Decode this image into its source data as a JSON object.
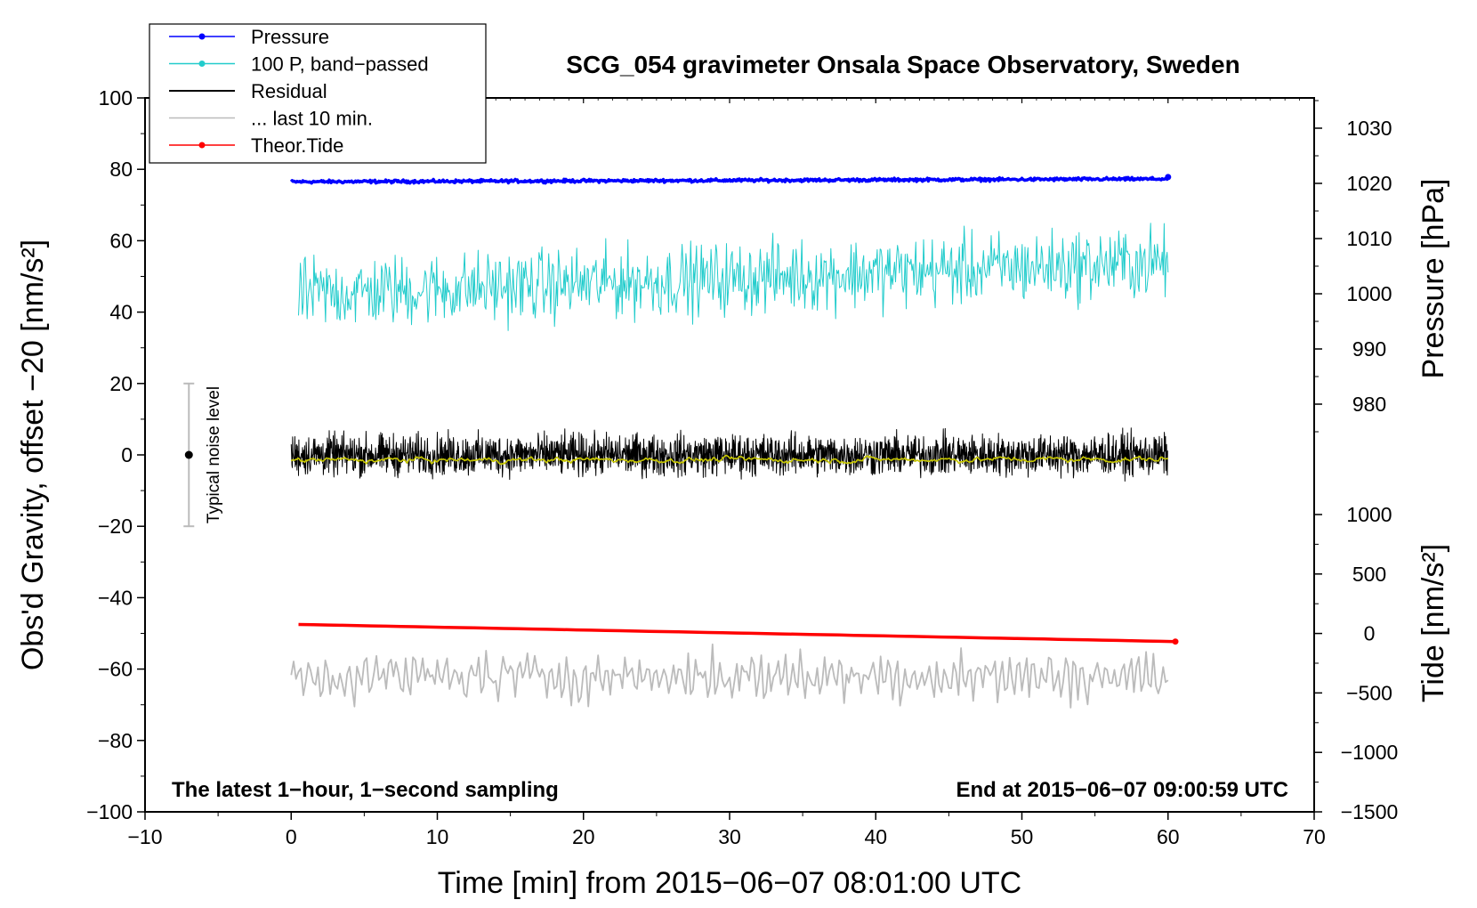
{
  "chart_data": {
    "type": "line",
    "title": "SCG_054 gravimeter Onsala Space Observatory, Sweden",
    "xlabel": "Time [min] from 2015−06−07 08:01:00 UTC",
    "ylabel_left": "Obs'd Gravity, offset −20 [nm/s²]",
    "ylabel_right_top": "Pressure [hPa]",
    "ylabel_right_bottom": "Tide [nm/s²]",
    "xlim": [
      -10,
      70
    ],
    "ylim": [
      -100,
      100
    ],
    "x_ticks": [
      "−10",
      "0",
      "10",
      "20",
      "30",
      "40",
      "50",
      "60",
      "70"
    ],
    "y_ticks": [
      "−100",
      "−80",
      "−60",
      "−40",
      "−20",
      "0",
      "20",
      "40",
      "60",
      "80",
      "100"
    ],
    "pressure_axis": {
      "ticks": [
        "980",
        "990",
        "1000",
        "1010",
        "1020",
        "1030"
      ],
      "range": [
        972,
        1038
      ]
    },
    "tide_axis": {
      "ticks": [
        "−1500",
        "−1000",
        "−500",
        "0",
        "500",
        "1000"
      ],
      "range": [
        -1500,
        1500
      ]
    },
    "note_left": "The latest 1−hour, 1−second sampling",
    "note_right": "End at 2015−06−07 09:00:59 UTC",
    "noise_bar": {
      "label": "Typical noise level",
      "x": -7,
      "center": 0,
      "low": -20,
      "high": 20
    },
    "legend": [
      {
        "label": "Pressure",
        "color": "#0000ff",
        "marker": true
      },
      {
        "label": "100 P, band−passed",
        "color": "#22cccc",
        "marker": true
      },
      {
        "label": "Residual",
        "color": "#000000",
        "marker": false
      },
      {
        "label": "... last 10 min.",
        "color": "#bbbbbb",
        "marker": false
      },
      {
        "label": "Theor.Tide",
        "color": "#ff0000",
        "marker": true
      }
    ],
    "series": [
      {
        "name": "Pressure",
        "color": "#0000ff",
        "x_range": [
          0,
          60
        ],
        "start": 76.5,
        "end": 77.3,
        "noise": 0.3
      },
      {
        "name": "100 P, band−passed",
        "color": "#22cccc",
        "x_range": [
          0.5,
          60
        ],
        "start": 45,
        "end": 54,
        "noise": 7
      },
      {
        "name": "Residual",
        "color": "#000000",
        "x_range": [
          0,
          60
        ],
        "start": 0,
        "end": 0,
        "noise": 4
      },
      {
        "name": "smoothed residual",
        "color": "#c8c800",
        "x_range": [
          0,
          60
        ],
        "start": -1.5,
        "end": -1.2,
        "noise": 0.8
      },
      {
        "name": "... last 10 min.",
        "color": "#bbbbbb",
        "x_range": [
          0,
          60
        ],
        "start": -62,
        "end": -62,
        "noise": 4
      },
      {
        "name": "Theor.Tide",
        "color": "#ff0000",
        "x_range": [
          0.5,
          60.5
        ],
        "start": -47.5,
        "end": -52.3,
        "noise": 0
      }
    ]
  }
}
